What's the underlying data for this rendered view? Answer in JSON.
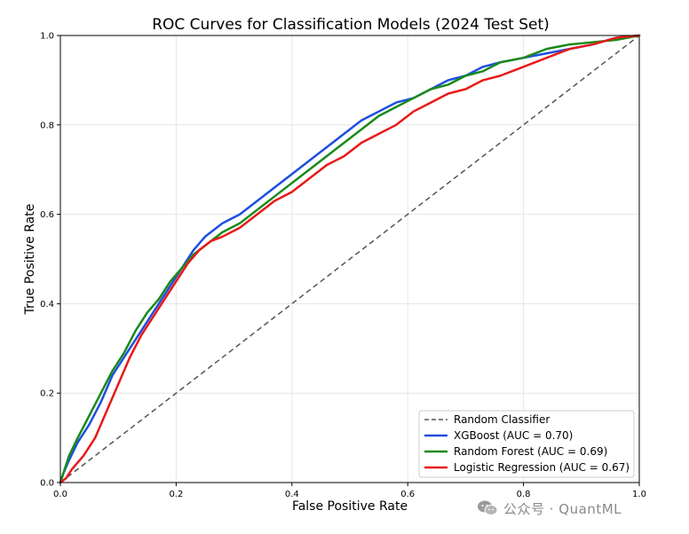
{
  "chart_data": {
    "type": "line",
    "title": "ROC Curves for Classification Models (2024 Test Set)",
    "xlabel": "False Positive Rate",
    "ylabel": "True Positive Rate",
    "xlim": [
      0,
      1
    ],
    "ylim": [
      0,
      1
    ],
    "grid": true,
    "legend_position": "lower-right",
    "xticks": [
      0.0,
      0.2,
      0.4,
      0.6,
      0.8,
      1.0
    ],
    "yticks": [
      0.0,
      0.2,
      0.4,
      0.6,
      0.8,
      1.0
    ],
    "xtick_labels": [
      "0.0",
      "0.2",
      "0.4",
      "0.6",
      "0.8",
      "1.0"
    ],
    "ytick_labels": [
      "0.0",
      "0.2",
      "0.4",
      "0.6",
      "0.8",
      "1.0"
    ],
    "baseline": {
      "name": "Random Classifier",
      "color": "#555555",
      "style": "dashed",
      "points": [
        [
          0,
          0
        ],
        [
          1,
          1
        ]
      ]
    },
    "series": [
      {
        "name": "XGBoost (AUC = 0.70)",
        "color": "#1f4fe0",
        "points": [
          [
            0,
            0
          ],
          [
            0.005,
            0.02
          ],
          [
            0.015,
            0.05
          ],
          [
            0.03,
            0.09
          ],
          [
            0.05,
            0.13
          ],
          [
            0.07,
            0.18
          ],
          [
            0.09,
            0.24
          ],
          [
            0.11,
            0.28
          ],
          [
            0.13,
            0.32
          ],
          [
            0.15,
            0.36
          ],
          [
            0.17,
            0.4
          ],
          [
            0.19,
            0.44
          ],
          [
            0.21,
            0.48
          ],
          [
            0.23,
            0.52
          ],
          [
            0.25,
            0.55
          ],
          [
            0.28,
            0.58
          ],
          [
            0.31,
            0.6
          ],
          [
            0.34,
            0.63
          ],
          [
            0.37,
            0.66
          ],
          [
            0.4,
            0.69
          ],
          [
            0.43,
            0.72
          ],
          [
            0.46,
            0.75
          ],
          [
            0.49,
            0.78
          ],
          [
            0.52,
            0.81
          ],
          [
            0.55,
            0.83
          ],
          [
            0.58,
            0.85
          ],
          [
            0.61,
            0.86
          ],
          [
            0.64,
            0.88
          ],
          [
            0.67,
            0.9
          ],
          [
            0.7,
            0.91
          ],
          [
            0.73,
            0.93
          ],
          [
            0.76,
            0.94
          ],
          [
            0.8,
            0.95
          ],
          [
            0.84,
            0.96
          ],
          [
            0.88,
            0.97
          ],
          [
            0.92,
            0.98
          ],
          [
            0.96,
            0.995
          ],
          [
            1,
            1
          ]
        ]
      },
      {
        "name": "Random Forest (AUC = 0.69)",
        "color": "#1a8a1a",
        "points": [
          [
            0,
            0
          ],
          [
            0.005,
            0.02
          ],
          [
            0.015,
            0.06
          ],
          [
            0.03,
            0.1
          ],
          [
            0.05,
            0.15
          ],
          [
            0.07,
            0.2
          ],
          [
            0.09,
            0.25
          ],
          [
            0.11,
            0.29
          ],
          [
            0.13,
            0.34
          ],
          [
            0.15,
            0.38
          ],
          [
            0.17,
            0.41
          ],
          [
            0.19,
            0.45
          ],
          [
            0.21,
            0.48
          ],
          [
            0.23,
            0.51
          ],
          [
            0.25,
            0.53
          ],
          [
            0.28,
            0.56
          ],
          [
            0.31,
            0.58
          ],
          [
            0.34,
            0.61
          ],
          [
            0.37,
            0.64
          ],
          [
            0.4,
            0.67
          ],
          [
            0.43,
            0.7
          ],
          [
            0.46,
            0.73
          ],
          [
            0.49,
            0.76
          ],
          [
            0.52,
            0.79
          ],
          [
            0.55,
            0.82
          ],
          [
            0.58,
            0.84
          ],
          [
            0.61,
            0.86
          ],
          [
            0.64,
            0.88
          ],
          [
            0.67,
            0.89
          ],
          [
            0.7,
            0.91
          ],
          [
            0.73,
            0.92
          ],
          [
            0.76,
            0.94
          ],
          [
            0.8,
            0.95
          ],
          [
            0.84,
            0.97
          ],
          [
            0.88,
            0.98
          ],
          [
            0.92,
            0.985
          ],
          [
            0.96,
            0.99
          ],
          [
            1,
            1
          ]
        ]
      },
      {
        "name": "Logistic Regression (AUC = 0.67)",
        "color": "#e81a1a",
        "points": [
          [
            0,
            0
          ],
          [
            0.01,
            0.01
          ],
          [
            0.02,
            0.03
          ],
          [
            0.04,
            0.06
          ],
          [
            0.06,
            0.1
          ],
          [
            0.08,
            0.16
          ],
          [
            0.1,
            0.22
          ],
          [
            0.12,
            0.28
          ],
          [
            0.14,
            0.33
          ],
          [
            0.16,
            0.37
          ],
          [
            0.18,
            0.41
          ],
          [
            0.2,
            0.45
          ],
          [
            0.22,
            0.49
          ],
          [
            0.24,
            0.52
          ],
          [
            0.26,
            0.54
          ],
          [
            0.28,
            0.55
          ],
          [
            0.31,
            0.57
          ],
          [
            0.34,
            0.6
          ],
          [
            0.37,
            0.63
          ],
          [
            0.4,
            0.65
          ],
          [
            0.43,
            0.68
          ],
          [
            0.46,
            0.71
          ],
          [
            0.49,
            0.73
          ],
          [
            0.52,
            0.76
          ],
          [
            0.55,
            0.78
          ],
          [
            0.58,
            0.8
          ],
          [
            0.61,
            0.83
          ],
          [
            0.64,
            0.85
          ],
          [
            0.67,
            0.87
          ],
          [
            0.7,
            0.88
          ],
          [
            0.73,
            0.9
          ],
          [
            0.76,
            0.91
          ],
          [
            0.8,
            0.93
          ],
          [
            0.84,
            0.95
          ],
          [
            0.88,
            0.97
          ],
          [
            0.92,
            0.98
          ],
          [
            0.96,
            0.995
          ],
          [
            1,
            1
          ]
        ]
      }
    ]
  },
  "watermark": {
    "text": "公众号 · QuantML",
    "icon": "wechat-icon"
  }
}
